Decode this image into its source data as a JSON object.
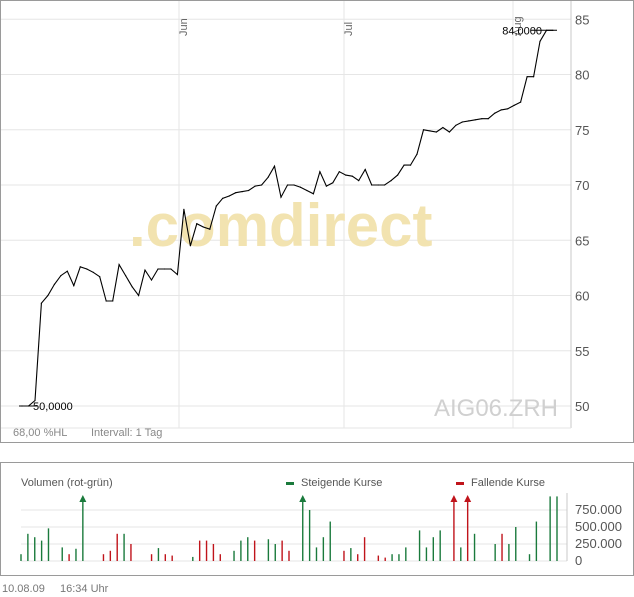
{
  "footer": {
    "date": "10.08.09",
    "time": "16:34 Uhr"
  },
  "chart_data": [
    {
      "type": "line",
      "symbol": "AIG06.ZRH",
      "watermark": ".comdirect",
      "info_left": "68,00 %HL",
      "info_interval": "Intervall: 1 Tag",
      "x_month_labels": [
        "Jun",
        "Jul",
        "Aug"
      ],
      "y_ticks": [
        50,
        55,
        60,
        65,
        70,
        75,
        80,
        85
      ],
      "ylim": [
        48,
        86
      ],
      "start_label": "50,0000",
      "end_label": "84,0000",
      "grid": true,
      "line_color": "#000000",
      "series": [
        {
          "values": [
            50.0,
            50.0,
            50.5,
            59.3,
            60.0,
            61.0,
            61.8,
            62.2,
            60.9,
            62.6,
            62.4,
            62.1,
            61.7,
            59.5,
            59.5,
            62.8,
            61.8,
            60.8,
            60.0,
            62.3,
            61.4,
            62.4,
            62.4,
            62.4,
            61.9,
            67.8,
            64.5,
            66.5,
            66.2,
            66.0,
            68.1,
            68.8,
            69.0,
            69.3,
            69.4,
            69.5,
            69.9,
            70.0,
            70.7,
            71.7,
            68.9,
            70.0,
            70.0,
            69.8,
            69.5,
            69.2,
            71.2,
            69.9,
            70.2,
            71.2,
            70.9,
            70.8,
            70.4,
            71.4,
            70.0,
            70.0,
            70.0,
            70.4,
            70.9,
            71.8,
            71.8,
            72.8,
            75.0,
            74.9,
            74.8,
            75.2,
            74.8,
            75.4,
            75.7,
            75.8,
            75.9,
            76.0,
            76.0,
            76.5,
            76.8,
            76.9,
            77.2,
            77.5,
            79.8,
            79.8,
            83.0,
            84.0,
            84.0
          ]
        }
      ]
    },
    {
      "type": "bar",
      "title": "Volumen (rot-grün)",
      "legend": [
        {
          "label": "Steigende Kurse",
          "color": "#1a7a3c"
        },
        {
          "label": "Fallende Kurse",
          "color": "#c0141b"
        }
      ],
      "y_ticks": [
        "750.000",
        "500.000",
        "250.000",
        "0"
      ],
      "y_tick_values": [
        750000,
        500000,
        250000,
        0
      ],
      "ylim": [
        0,
        1000000
      ],
      "up_color": "#1a7a3c",
      "down_color": "#c0141b",
      "values": [
        100000,
        400000,
        350000,
        300000,
        480000,
        0,
        200000,
        100000,
        180000,
        900000,
        0,
        0,
        100000,
        150000,
        400000,
        400000,
        250000,
        0,
        0,
        100000,
        190000,
        100000,
        80000,
        0,
        0,
        60000,
        300000,
        300000,
        250000,
        100000,
        0,
        150000,
        300000,
        350000,
        300000,
        0,
        320000,
        250000,
        300000,
        150000,
        0,
        900000,
        750000,
        200000,
        350000,
        580000,
        0,
        150000,
        190000,
        100000,
        350000,
        0,
        80000,
        50000,
        100000,
        100000,
        200000,
        0,
        450000,
        200000,
        350000,
        450000,
        0,
        900000,
        200000,
        900000,
        400000,
        0,
        0,
        250000,
        400000,
        250000,
        500000,
        0,
        100000,
        580000,
        0,
        950000,
        950000
      ],
      "directions": [
        "g",
        "g",
        "g",
        "g",
        "g",
        "g",
        "g",
        "r",
        "g",
        "g",
        "g",
        "g",
        "r",
        "r",
        "r",
        "g",
        "r",
        "r",
        "r",
        "r",
        "g",
        "r",
        "r",
        "r",
        "r",
        "g",
        "r",
        "r",
        "r",
        "r",
        "r",
        "g",
        "g",
        "g",
        "r",
        "r",
        "g",
        "g",
        "r",
        "r",
        "r",
        "g",
        "g",
        "g",
        "g",
        "g",
        "g",
        "r",
        "g",
        "r",
        "r",
        "r",
        "r",
        "r",
        "g",
        "g",
        "g",
        "g",
        "g",
        "g",
        "g",
        "g",
        "r",
        "r",
        "g",
        "r",
        "g",
        "g",
        "g",
        "g",
        "r",
        "g",
        "g",
        "g",
        "g",
        "g",
        "g",
        "g",
        "g"
      ],
      "overflow_indices": [
        9,
        41,
        63,
        65
      ]
    }
  ]
}
